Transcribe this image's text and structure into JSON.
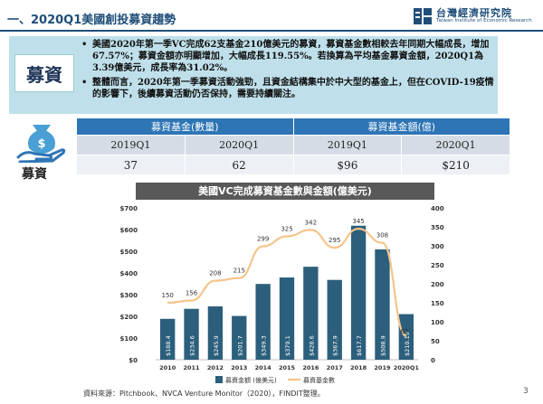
{
  "header": {
    "title": "一、2020Q1美國創投募資趨勢"
  },
  "logo": {
    "name": "台灣經濟研究院",
    "english": "Taiwan Institute of Economic Research"
  },
  "summary": {
    "label": "募資",
    "bullets": [
      "美國2020年第一季VC完成62支基金210億美元的募資，募資基金數相較去年同期大幅成長，增加67.57%；募資金額亦明顯增加，大幅成長119.55%。若換算為平均基金募資金額，2020Q1為3.39億美元，成長率為31.02%。",
      "整體而言，2020年第一季募資活動強勁，且資金結構集中於中大型的基金上，但在COVID-19疫情的影響下，後續募資活動仍否保持，需要持續關注。"
    ]
  },
  "fund_section": {
    "icon": "money-bag-hand-icon",
    "label": "募資"
  },
  "table": {
    "groups": [
      "募資基金(數量)",
      "募資基金額(億)"
    ],
    "years": [
      "2019Q1",
      "2020Q1",
      "2019Q1",
      "2020Q1"
    ],
    "values": [
      "37",
      "62",
      "$96",
      "$210"
    ]
  },
  "chart_data": {
    "type": "bar",
    "title": "美國VC完成募資基金數與金額(億美元)",
    "categories": [
      "2010",
      "2011",
      "2012",
      "2013",
      "2014",
      "2015",
      "2016",
      "2017",
      "2018",
      "2019",
      "2020Q1"
    ],
    "series": [
      {
        "name": "募資金額 (億美元)",
        "type": "bar",
        "axis": "left",
        "values": [
          188.4,
          234.6,
          245.9,
          201.7,
          349.3,
          379.1,
          428.6,
          367.9,
          617.7,
          508.9,
          210.19
        ]
      },
      {
        "name": "募資基金數",
        "type": "line",
        "axis": "right",
        "values": [
          150,
          156,
          208,
          215,
          299,
          325,
          342,
          295,
          345,
          308,
          62
        ]
      }
    ],
    "bar_labels": [
      "$188.4",
      "$234.6",
      "$245.9",
      "$201.7",
      "$349.3",
      "$379.1",
      "$428.6",
      "$367.9",
      "$617.7",
      "$508.9",
      "$210.19"
    ],
    "left_ticks": [
      "$0",
      "$100",
      "$200",
      "$300",
      "$400",
      "$500",
      "$600",
      "$700"
    ],
    "right_ticks": [
      "0",
      "50",
      "100",
      "150",
      "200",
      "250",
      "300",
      "350",
      "400"
    ],
    "ylim_left": [
      0,
      700
    ],
    "ylim_right": [
      0,
      400
    ],
    "legend_position": "bottom",
    "colors": {
      "bar": "#2c5f7c",
      "line": "#f5c58a"
    }
  },
  "footer": {
    "source": "資料來源：Pitchbook、NVCA Venture Monitor（2020），FINDIT整理。"
  },
  "page": {
    "number": "3"
  }
}
